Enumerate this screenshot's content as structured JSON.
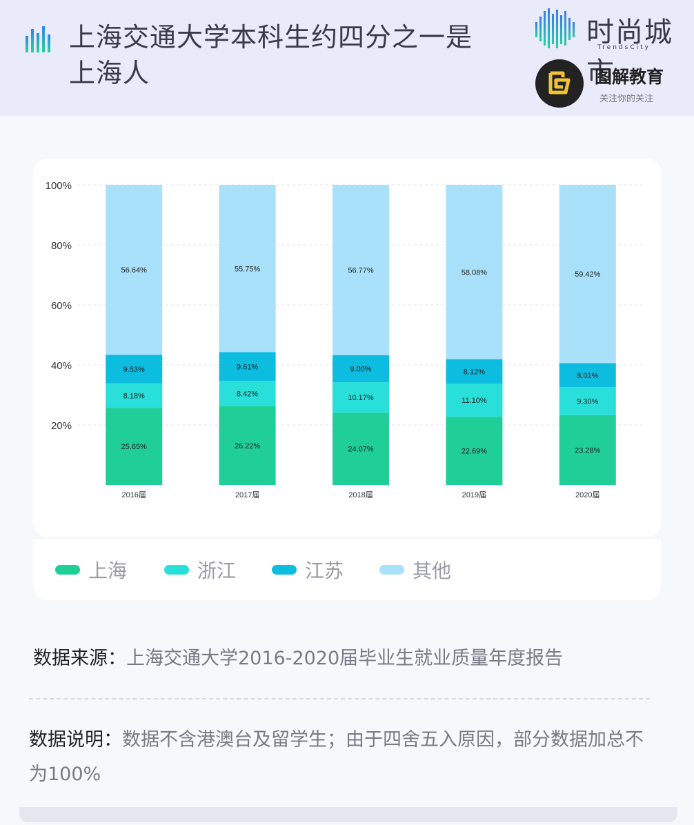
{
  "header": {
    "title": "上海交通大学本科生约四分之一是上海人",
    "brand1_name": "时尚城市",
    "brand1_sub": "TrendsCity",
    "brand2_name": "图解教育",
    "brand2_slogan": "关注你的关注"
  },
  "colors": {
    "shanghai": "#20ce97",
    "zhejiang": "#29dfd9",
    "jiangsu": "#0dbde0",
    "other": "#a9e1fa"
  },
  "legend": [
    {
      "label": "上海",
      "color": "#20ce97"
    },
    {
      "label": "浙江",
      "color": "#29dfd9"
    },
    {
      "label": "江苏",
      "color": "#0dbde0"
    },
    {
      "label": "其他",
      "color": "#a9e1fa"
    }
  ],
  "chart_data": {
    "type": "bar",
    "stacked": true,
    "title": "",
    "xlabel": "",
    "ylabel": "",
    "ylim": [
      0,
      100
    ],
    "yticks": [
      "20%",
      "40%",
      "60%",
      "80%",
      "100%"
    ],
    "grid": true,
    "legend_position": "bottom",
    "categories": [
      "2016届",
      "2017届",
      "2018届",
      "2019届",
      "2020届"
    ],
    "series": [
      {
        "name": "上海",
        "values": [
          25.65,
          26.22,
          24.07,
          22.69,
          23.28
        ],
        "labels": [
          "25.65%",
          "26.22%",
          "24.07%",
          "22.69%",
          "23.28%"
        ]
      },
      {
        "name": "浙江",
        "values": [
          8.18,
          8.42,
          10.17,
          11.1,
          9.3
        ],
        "labels": [
          "8.18%",
          "8.42%",
          "10.17%",
          "11.10%",
          "9.30%"
        ]
      },
      {
        "name": "江苏",
        "values": [
          9.53,
          9.61,
          9.0,
          8.12,
          8.01
        ],
        "labels": [
          "9.53%",
          "9.61%",
          "9.00%",
          "8.12%",
          "8.01%"
        ]
      },
      {
        "name": "其他",
        "values": [
          56.64,
          55.75,
          56.77,
          58.08,
          59.42
        ],
        "labels": [
          "56.64%",
          "55.75%",
          "56.77%",
          "58.08%",
          "59.42%"
        ]
      }
    ]
  },
  "footer": {
    "source_label": "数据来源：",
    "source_value": "上海交通大学2016-2020届毕业生就业质量年度报告",
    "note_label": "数据说明：",
    "note_value": "数据不含港澳台及留学生；由于四舍五入原因，部分数据加总不为100%"
  }
}
